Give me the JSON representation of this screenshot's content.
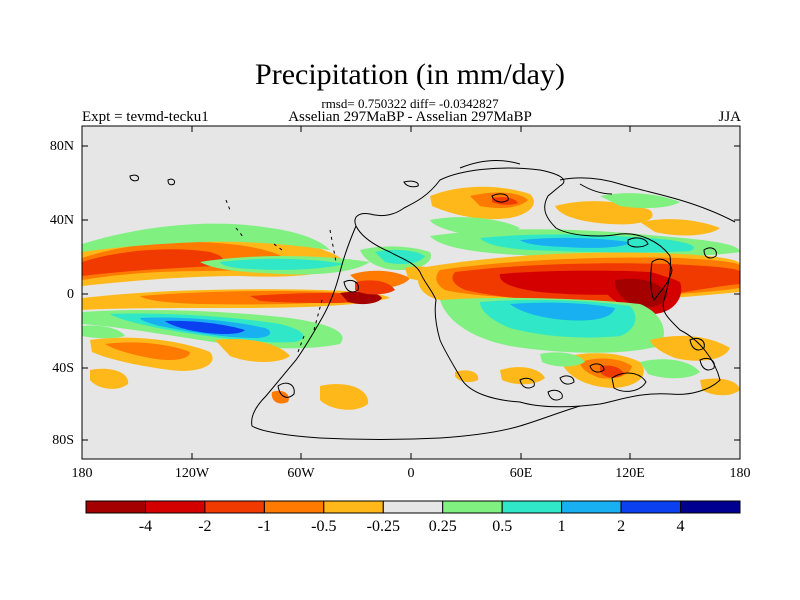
{
  "title": "Precipitation (in mm/day)",
  "subtitle": "rmsd= 0.750322 diff= -0.0342827",
  "left_label": "Expt = tevmd-tecku1",
  "center_label": "Asselian 297MaBP - Asselian 297MaBP",
  "right_label": "JJA",
  "lat_labels": [
    "80N",
    "40N",
    "0",
    "40S",
    "80S"
  ],
  "lon_labels": [
    "180",
    "120W",
    "60W",
    "0",
    "60E",
    "120E",
    "180"
  ],
  "colorbar": {
    "labels": [
      "-4",
      "-2",
      "-1",
      "-0.5",
      "-0.25",
      "0.25",
      "0.5",
      "1",
      "2",
      "4"
    ],
    "colors": [
      "#a50000",
      "#d40000",
      "#f03a00",
      "#ff7a00",
      "#ffb81a",
      "#e6e6e6",
      "#80f080",
      "#30e8c8",
      "#18b0f0",
      "#0a40f0",
      "#000090"
    ]
  },
  "colors": {
    "background_field": "#e6e6e6",
    "coastline": "#000000"
  }
}
